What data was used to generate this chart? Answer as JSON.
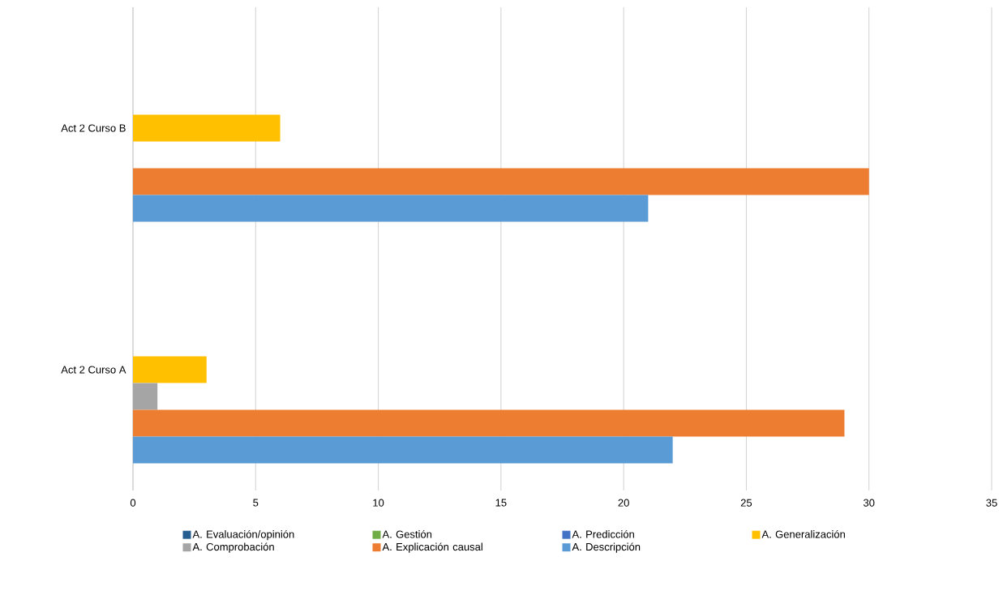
{
  "chart_data": {
    "type": "bar",
    "orientation": "horizontal",
    "categories": [
      "Act 2 Curso B",
      "Act 2 Curso A"
    ],
    "series": [
      {
        "name": "A. Evaluación/opinión",
        "color": "#255e91",
        "values": [
          0,
          0
        ]
      },
      {
        "name": "A. Gestión",
        "color": "#70ad47",
        "values": [
          0,
          0
        ]
      },
      {
        "name": "A. Predicción",
        "color": "#4472c4",
        "values": [
          0,
          0
        ]
      },
      {
        "name": "A. Generalización",
        "color": "#ffc000",
        "values": [
          6,
          3
        ]
      },
      {
        "name": "A. Comprobación",
        "color": "#a5a5a5",
        "values": [
          0,
          1
        ]
      },
      {
        "name": "A. Explicación causal",
        "color": "#ed7d31",
        "values": [
          30,
          29
        ]
      },
      {
        "name": "A. Descripción",
        "color": "#5b9bd5",
        "values": [
          21,
          22
        ]
      }
    ],
    "xlim": [
      0,
      35
    ],
    "xticks": [
      0,
      5,
      10,
      15,
      20,
      25,
      30,
      35
    ],
    "grid": "x",
    "legend": "bottom"
  }
}
